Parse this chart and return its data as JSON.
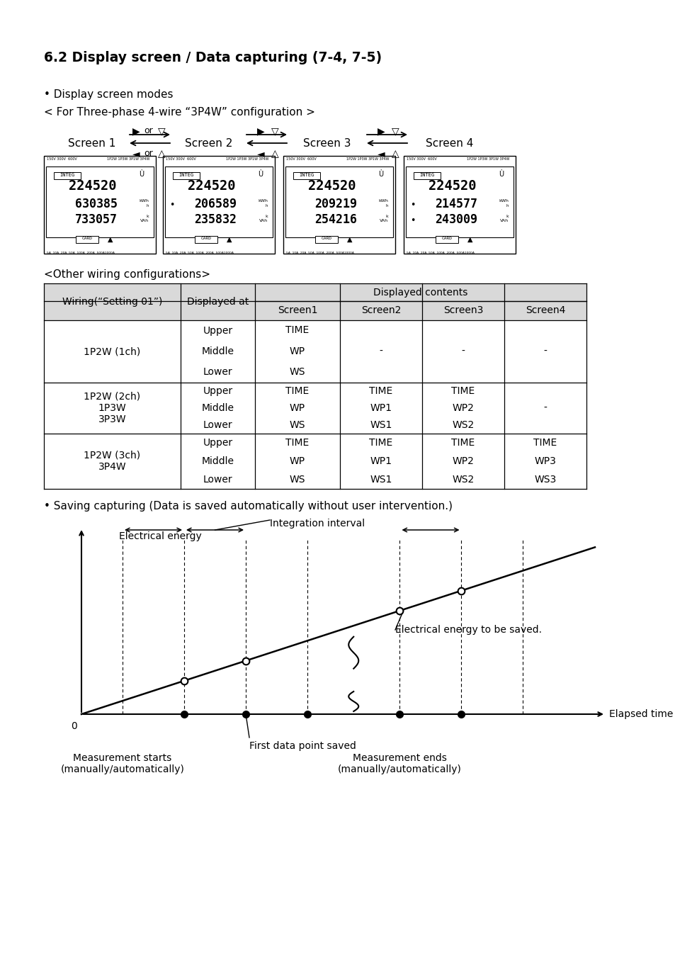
{
  "title": "6.2 Display screen / Data capturing (7-4, 7-5)",
  "bullet1": "• Display screen modes",
  "config_label": "< For Three-phase 4-wire “3P4W” configuration >",
  "screen_labels": [
    "Screen 1",
    "Screen 2",
    "Screen 3",
    "Screen 4"
  ],
  "other_wiring_title": "<Other wiring configurations>",
  "table_header_col1": "Wiring(“Setting 01”)",
  "table_header_col2": "Displayed at",
  "table_header_merged": "Displayed contents",
  "table_screen_headers": [
    "Screen1",
    "Screen2",
    "Screen3",
    "Screen4"
  ],
  "bullet2": "• Saving capturing (Data is saved automatically without user intervention.)",
  "graph_ylabel": "Electrical energy",
  "graph_xlabel": "Elapsed time",
  "graph_label_integration": "Integration interval",
  "graph_label_electrical": "Electrical energy to be saved.",
  "graph_label_first": "First data point saved",
  "graph_label_mstart": "Measurement starts\n(manually/automatically)",
  "graph_label_mend": "Measurement ends\n(manually/automatically)",
  "bg_color": "#ffffff",
  "text_color": "#000000",
  "table_header_bg": "#d9d9d9",
  "lcd_data": [
    [
      "224520",
      "630385",
      "733057"
    ],
    [
      "224520",
      "206589",
      "235832"
    ],
    [
      "224520",
      "209219",
      "254216"
    ],
    [
      "224520",
      "214577",
      "243009"
    ]
  ]
}
